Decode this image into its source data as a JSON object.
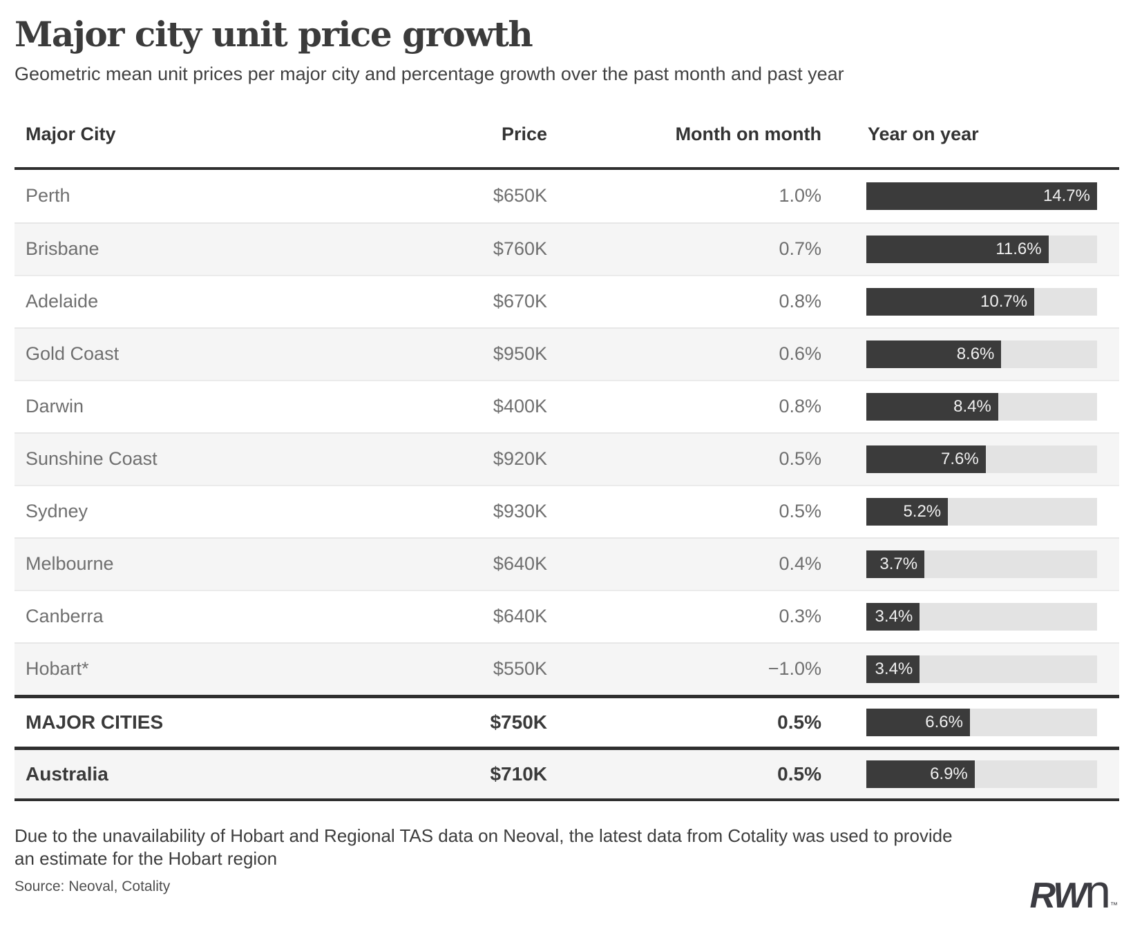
{
  "header": {
    "title": "Major city unit price growth",
    "subtitle": "Geometric mean unit prices per major city and percentage growth over the past month and past year"
  },
  "table": {
    "columns": [
      "Major City",
      "Price",
      "Month on month",
      "Year on year"
    ],
    "yoy_axis_max": 14.7,
    "rows": [
      {
        "city": "Perth",
        "price": "$650K",
        "mom": "1.0%",
        "yoy": 14.7,
        "yoy_label": "14.7%"
      },
      {
        "city": "Brisbane",
        "price": "$760K",
        "mom": "0.7%",
        "yoy": 11.6,
        "yoy_label": "11.6%"
      },
      {
        "city": "Adelaide",
        "price": "$670K",
        "mom": "0.8%",
        "yoy": 10.7,
        "yoy_label": "10.7%"
      },
      {
        "city": "Gold Coast",
        "price": "$950K",
        "mom": "0.6%",
        "yoy": 8.6,
        "yoy_label": "8.6%"
      },
      {
        "city": "Darwin",
        "price": "$400K",
        "mom": "0.8%",
        "yoy": 8.4,
        "yoy_label": "8.4%"
      },
      {
        "city": "Sunshine Coast",
        "price": "$920K",
        "mom": "0.5%",
        "yoy": 7.6,
        "yoy_label": "7.6%"
      },
      {
        "city": "Sydney",
        "price": "$930K",
        "mom": "0.5%",
        "yoy": 5.2,
        "yoy_label": "5.2%"
      },
      {
        "city": "Melbourne",
        "price": "$640K",
        "mom": "0.4%",
        "yoy": 3.7,
        "yoy_label": "3.7%"
      },
      {
        "city": "Canberra",
        "price": "$640K",
        "mom": "0.3%",
        "yoy": 3.4,
        "yoy_label": "3.4%"
      },
      {
        "city": "Hobart*",
        "price": "$550K",
        "mom": "−1.0%",
        "yoy": 3.4,
        "yoy_label": "3.4%"
      }
    ],
    "summary_rows": [
      {
        "city": "MAJOR CITIES",
        "price": "$750K",
        "mom": "0.5%",
        "yoy": 6.6,
        "yoy_label": "6.6%"
      },
      {
        "city": "Australia",
        "price": "$710K",
        "mom": "0.5%",
        "yoy": 6.9,
        "yoy_label": "6.9%"
      }
    ]
  },
  "chart_data": {
    "type": "bar",
    "orientation": "horizontal",
    "title": "Major city unit price growth",
    "subtitle": "Geometric mean unit prices per major city and percentage growth over the past month and past year",
    "categories": [
      "Perth",
      "Brisbane",
      "Adelaide",
      "Gold Coast",
      "Darwin",
      "Sunshine Coast",
      "Sydney",
      "Melbourne",
      "Canberra",
      "Hobart*",
      "MAJOR CITIES",
      "Australia"
    ],
    "series": [
      {
        "name": "Price",
        "values": [
          "$650K",
          "$760K",
          "$670K",
          "$950K",
          "$400K",
          "$920K",
          "$930K",
          "$640K",
          "$640K",
          "$550K",
          "$750K",
          "$710K"
        ]
      },
      {
        "name": "Month on month",
        "unit": "%",
        "values": [
          1.0,
          0.7,
          0.8,
          0.6,
          0.8,
          0.5,
          0.5,
          0.4,
          0.3,
          -1.0,
          0.5,
          0.5
        ]
      },
      {
        "name": "Year on year",
        "unit": "%",
        "values": [
          14.7,
          11.6,
          10.7,
          8.6,
          8.4,
          7.6,
          5.2,
          3.7,
          3.4,
          3.4,
          6.6,
          6.9
        ]
      }
    ],
    "xlim": [
      0,
      14.7
    ],
    "legend_position": "none",
    "grid": false,
    "bar_color": "#3b3b3b",
    "track_color": "#e3e3e3"
  },
  "footer": {
    "footnote": "Due to the unavailability of Hobart and Regional TAS data on Neoval, the latest data from Cotality was used to provide an estimate for the Hobart region",
    "source": "Source: Neoval, Cotality",
    "logo": {
      "bold_part": "RW",
      "light_part": "n",
      "tm": "™"
    }
  }
}
